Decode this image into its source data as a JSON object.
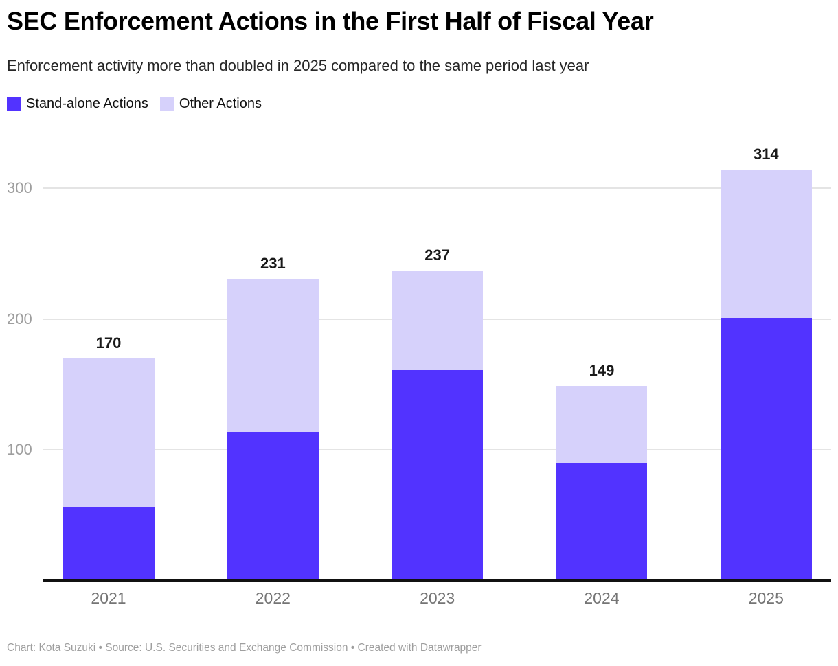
{
  "header": {
    "title": "SEC Enforcement Actions in the First Half of Fiscal Year",
    "subtitle": "Enforcement activity more than doubled in 2025 compared to the same period last year"
  },
  "legend": [
    {
      "label": "Stand-alone Actions",
      "color": "#5233ff"
    },
    {
      "label": "Other Actions",
      "color": "#d6d1fb"
    }
  ],
  "chart_data": {
    "type": "bar",
    "stacked": true,
    "title": "SEC Enforcement Actions in the First Half of Fiscal Year",
    "categories": [
      "2021",
      "2022",
      "2023",
      "2024",
      "2025"
    ],
    "series": [
      {
        "name": "Stand-alone Actions",
        "color": "#5233ff",
        "values": [
          56,
          114,
          161,
          90,
          201
        ]
      },
      {
        "name": "Other Actions",
        "color": "#d6d1fb",
        "values": [
          114,
          117,
          76,
          59,
          113
        ]
      }
    ],
    "totals": [
      170,
      231,
      237,
      149,
      314
    ],
    "xlabel": "",
    "ylabel": "",
    "yticks": [
      100,
      200,
      300
    ],
    "ylim": [
      0,
      330
    ],
    "grid": "horizontal",
    "legend_position": "top-left",
    "colors": {
      "gridline": "#e4e4e4",
      "axis_line": "#111111",
      "ytick_label": "#9e9e9e",
      "xtick_label": "#757575",
      "total_label": "#1a1a1a"
    }
  },
  "footer": {
    "text": "Chart: Kota Suzuki  • Source: U.S. Securities and Exchange Commission • Created with Datawrapper"
  }
}
